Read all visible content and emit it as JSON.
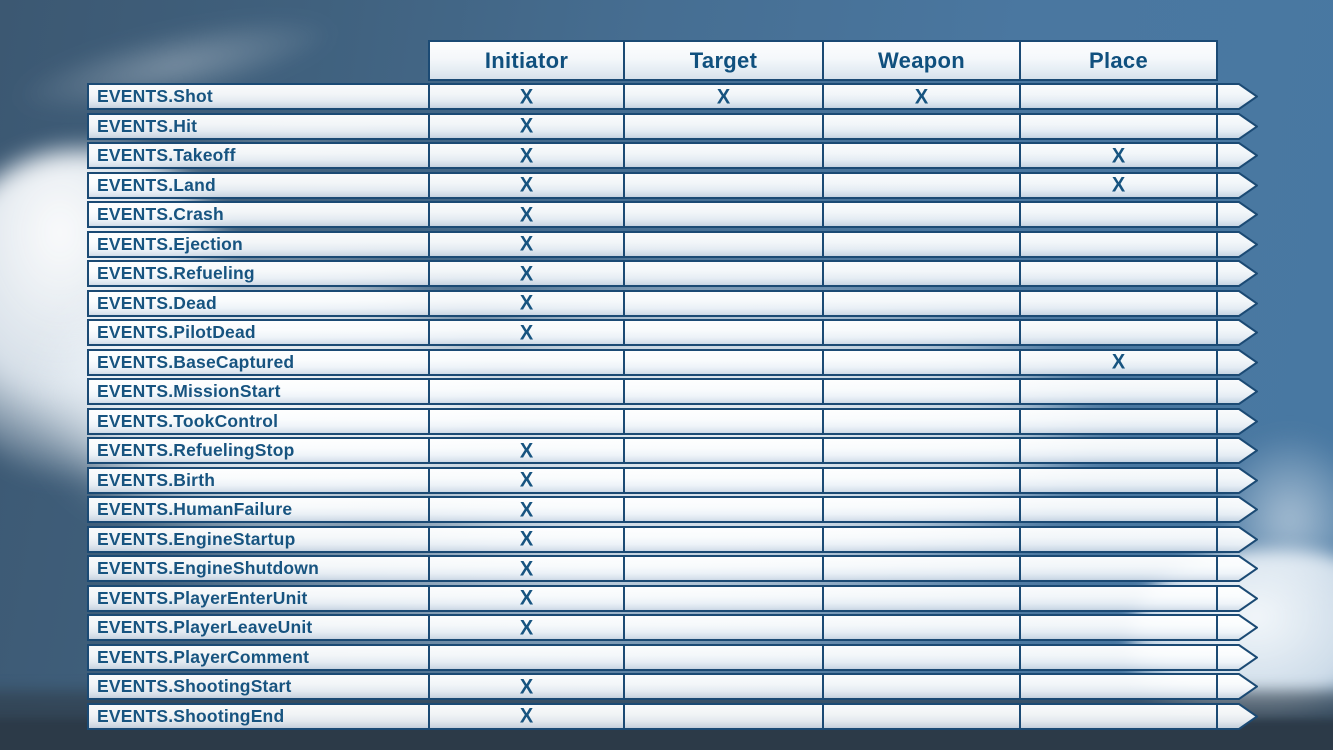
{
  "colors": {
    "border": "#1b4a74",
    "text": "#175480",
    "header_text": "#10507e",
    "sky_left": "#3c5872",
    "sky_right": "#4878a2"
  },
  "table": {
    "mark": "X",
    "columns": [
      "Initiator",
      "Target",
      "Weapon",
      "Place"
    ],
    "rows": [
      {
        "label": "EVENTS.Shot",
        "initiator": true,
        "target": true,
        "weapon": true,
        "place": false
      },
      {
        "label": "EVENTS.Hit",
        "initiator": true,
        "target": false,
        "weapon": false,
        "place": false
      },
      {
        "label": "EVENTS.Takeoff",
        "initiator": true,
        "target": false,
        "weapon": false,
        "place": true
      },
      {
        "label": "EVENTS.Land",
        "initiator": true,
        "target": false,
        "weapon": false,
        "place": true
      },
      {
        "label": "EVENTS.Crash",
        "initiator": true,
        "target": false,
        "weapon": false,
        "place": false
      },
      {
        "label": "EVENTS.Ejection",
        "initiator": true,
        "target": false,
        "weapon": false,
        "place": false
      },
      {
        "label": "EVENTS.Refueling",
        "initiator": true,
        "target": false,
        "weapon": false,
        "place": false
      },
      {
        "label": "EVENTS.Dead",
        "initiator": true,
        "target": false,
        "weapon": false,
        "place": false
      },
      {
        "label": "EVENTS.PilotDead",
        "initiator": true,
        "target": false,
        "weapon": false,
        "place": false
      },
      {
        "label": "EVENTS.BaseCaptured",
        "initiator": false,
        "target": false,
        "weapon": false,
        "place": true
      },
      {
        "label": "EVENTS.MissionStart",
        "initiator": false,
        "target": false,
        "weapon": false,
        "place": false
      },
      {
        "label": "EVENTS.TookControl",
        "initiator": false,
        "target": false,
        "weapon": false,
        "place": false
      },
      {
        "label": "EVENTS.RefuelingStop",
        "initiator": true,
        "target": false,
        "weapon": false,
        "place": false
      },
      {
        "label": "EVENTS.Birth",
        "initiator": true,
        "target": false,
        "weapon": false,
        "place": false
      },
      {
        "label": "EVENTS.HumanFailure",
        "initiator": true,
        "target": false,
        "weapon": false,
        "place": false
      },
      {
        "label": "EVENTS.EngineStartup",
        "initiator": true,
        "target": false,
        "weapon": false,
        "place": false
      },
      {
        "label": "EVENTS.EngineShutdown",
        "initiator": true,
        "target": false,
        "weapon": false,
        "place": false
      },
      {
        "label": "EVENTS.PlayerEnterUnit",
        "initiator": true,
        "target": false,
        "weapon": false,
        "place": false
      },
      {
        "label": "EVENTS.PlayerLeaveUnit",
        "initiator": true,
        "target": false,
        "weapon": false,
        "place": false
      },
      {
        "label": "EVENTS.PlayerComment",
        "initiator": false,
        "target": false,
        "weapon": false,
        "place": false
      },
      {
        "label": "EVENTS.ShootingStart",
        "initiator": true,
        "target": false,
        "weapon": false,
        "place": false
      },
      {
        "label": "EVENTS.ShootingEnd",
        "initiator": true,
        "target": false,
        "weapon": false,
        "place": false
      }
    ]
  }
}
